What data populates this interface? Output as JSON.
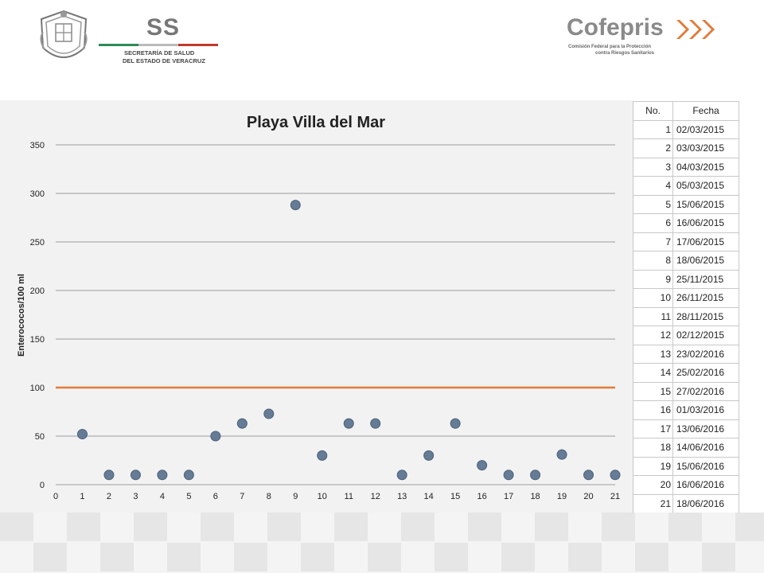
{
  "header": {
    "ss_logo": {
      "mark": "SS",
      "line1": "SECRETARÍA DE SALUD",
      "line2": "DEL ESTADO DE VERACRUZ"
    },
    "cofepris_logo": {
      "name": "Cofepris",
      "line1": "Comisión Federal para la Protección",
      "line2": "contra Riesgos Sanitarios"
    }
  },
  "colors": {
    "marker": "#667c96",
    "marker_stroke": "#4a5f78",
    "limit_line": "#e07b39",
    "grid": "#7f7f7f",
    "panel": "#f2f2f2"
  },
  "chart_data": {
    "type": "scatter",
    "title": "Playa Villa del Mar",
    "xlabel": "",
    "ylabel": "Enterococos/100 ml",
    "xlim": [
      0,
      21
    ],
    "ylim": [
      0,
      350
    ],
    "xticks": [
      0,
      1,
      2,
      3,
      4,
      5,
      6,
      7,
      8,
      9,
      10,
      11,
      12,
      13,
      14,
      15,
      16,
      17,
      18,
      19,
      20,
      21
    ],
    "yticks": [
      0,
      50,
      100,
      150,
      200,
      250,
      300,
      350
    ],
    "grid": "horizontal",
    "series": [
      {
        "points": [
          [
            1,
            52
          ],
          [
            2,
            10
          ],
          [
            3,
            10
          ],
          [
            4,
            10
          ],
          [
            5,
            10
          ],
          [
            6,
            50
          ],
          [
            7,
            63
          ],
          [
            8,
            73
          ],
          [
            9,
            288
          ],
          [
            10,
            30
          ],
          [
            11,
            63
          ],
          [
            12,
            63
          ],
          [
            13,
            10
          ],
          [
            14,
            30
          ],
          [
            15,
            63
          ],
          [
            16,
            20
          ],
          [
            17,
            10
          ],
          [
            18,
            10
          ],
          [
            19,
            31
          ],
          [
            20,
            10
          ],
          [
            21,
            10
          ]
        ]
      }
    ],
    "reference_line": {
      "y": 100
    }
  },
  "table": {
    "headers": [
      "No.",
      "Fecha"
    ],
    "rows": [
      [
        "1",
        "02/03/2015"
      ],
      [
        "2",
        "03/03/2015"
      ],
      [
        "3",
        "04/03/2015"
      ],
      [
        "4",
        "05/03/2015"
      ],
      [
        "5",
        "15/06/2015"
      ],
      [
        "6",
        "16/06/2015"
      ],
      [
        "7",
        "17/06/2015"
      ],
      [
        "8",
        "18/06/2015"
      ],
      [
        "9",
        "25/11/2015"
      ],
      [
        "10",
        "26/11/2015"
      ],
      [
        "11",
        "28/11/2015"
      ],
      [
        "12",
        "02/12/2015"
      ],
      [
        "13",
        "23/02/2016"
      ],
      [
        "14",
        "25/02/2016"
      ],
      [
        "15",
        "27/02/2016"
      ],
      [
        "16",
        "01/03/2016"
      ],
      [
        "17",
        "13/06/2016"
      ],
      [
        "18",
        "14/06/2016"
      ],
      [
        "19",
        "15/06/2016"
      ],
      [
        "20",
        "16/06/2016"
      ],
      [
        "21",
        "18/06/2016"
      ]
    ]
  }
}
